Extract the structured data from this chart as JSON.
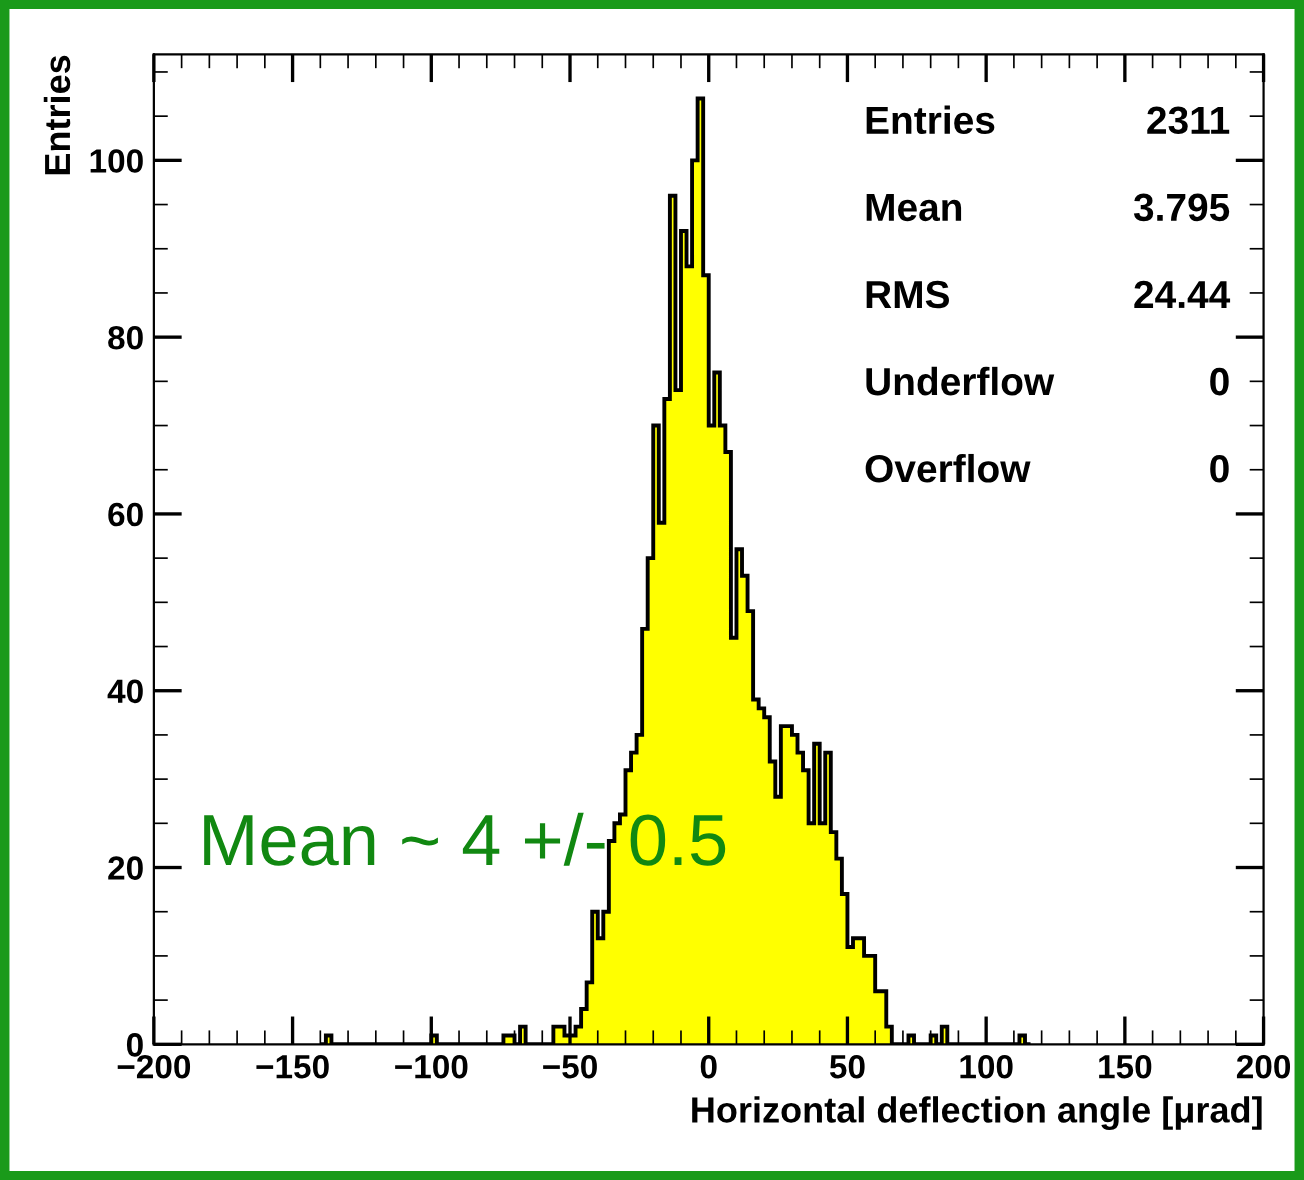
{
  "chart_data": {
    "type": "histogram",
    "xlabel": "Horizontal deflection angle [μrad]",
    "ylabel": "Entries",
    "bins": [
      -140,
      -138,
      -136,
      -134,
      -132,
      -130,
      -128,
      -126,
      -124,
      -122,
      -120,
      -118,
      -116,
      -114,
      -112,
      -110,
      -108,
      -106,
      -104,
      -102,
      -100,
      -98,
      -96,
      -94,
      -92,
      -90,
      -88,
      -86,
      -84,
      -82,
      -80,
      -78,
      -76,
      -74,
      -72,
      -70,
      -68,
      -66,
      -64,
      -62,
      -60,
      -58,
      -56,
      -54,
      -52,
      -50,
      -48,
      -46,
      -44,
      -42,
      -40,
      -38,
      -36,
      -34,
      -32,
      -30,
      -28,
      -26,
      -24,
      -22,
      -20,
      -18,
      -16,
      -14,
      -12,
      -10,
      -8,
      -6,
      -4,
      -2,
      0,
      2,
      4,
      6,
      8,
      10,
      12,
      14,
      16,
      18,
      20,
      22,
      24,
      26,
      28,
      30,
      32,
      34,
      36,
      38,
      40,
      42,
      44,
      46,
      48,
      50,
      52,
      54,
      56,
      58,
      60,
      62,
      64,
      66,
      68,
      70,
      72,
      74,
      76,
      78,
      80,
      82,
      84,
      86,
      88,
      90,
      92,
      94,
      96,
      98,
      100,
      102,
      104,
      106,
      108,
      110,
      112,
      114,
      116
    ],
    "values": [
      0,
      1,
      0,
      0,
      0,
      0,
      0,
      0,
      0,
      0,
      0,
      0,
      0,
      0,
      0,
      0,
      0,
      0,
      0,
      0,
      1,
      0,
      0,
      0,
      0,
      0,
      0,
      0,
      0,
      0,
      0,
      0,
      0,
      1,
      1,
      0,
      2,
      0,
      0,
      0,
      0,
      0,
      2,
      2,
      1,
      1,
      2,
      4,
      7,
      15,
      12,
      15,
      23,
      25,
      26,
      31,
      33,
      35,
      47,
      55,
      70,
      59,
      73,
      96,
      74,
      92,
      88,
      100,
      107,
      87,
      70,
      76,
      70,
      67,
      46,
      56,
      53,
      49,
      39,
      38,
      37,
      32,
      28,
      36,
      36,
      35,
      33,
      31,
      25,
      34,
      25,
      33,
      24,
      21,
      17,
      11,
      12,
      12,
      10,
      10,
      6,
      6,
      2,
      0,
      0,
      0,
      1,
      0,
      0,
      0,
      1,
      0,
      2,
      0,
      0,
      0,
      0,
      0,
      0,
      0,
      0,
      0,
      0,
      0,
      0,
      0,
      1,
      0
    ],
    "color": "#ffff00",
    "xlim": [
      -200,
      200
    ],
    "ylim": [
      0,
      112
    ],
    "xticks": [
      {
        "value": -200,
        "label": "−200"
      },
      {
        "value": -150,
        "label": "−150"
      },
      {
        "value": -100,
        "label": "−100"
      },
      {
        "value": -50,
        "label": "−50"
      },
      0,
      50,
      100,
      150,
      200
    ],
    "yticks": [
      0,
      20,
      40,
      60,
      80,
      100
    ],
    "grid": false,
    "annotations": [
      "Entries",
      "2311",
      "Mean",
      "3.795",
      "RMS",
      "24.44",
      "Underflow",
      "0",
      "Overflow",
      "0",
      "Mean ~ 4 +/- 0.5"
    ]
  }
}
